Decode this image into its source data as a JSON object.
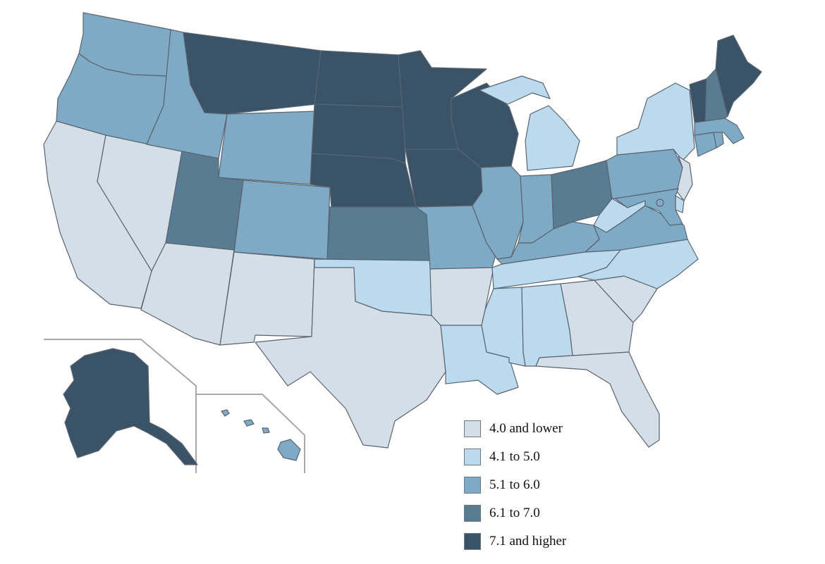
{
  "colors": {
    "c1": "#d4dee7",
    "c2": "#bcdaee",
    "c3": "#7eaac6",
    "c4": "#587c92",
    "c5": "#3b5366",
    "border": "#5a6470",
    "inset": "#a8a8a8"
  },
  "legend": [
    {
      "label": "4.0 and lower",
      "color": "#d4dee7"
    },
    {
      "label": "4.1 to 5.0",
      "color": "#bcdaee"
    },
    {
      "label": "5.1 to 6.0",
      "color": "#7eaac6"
    },
    {
      "label": "6.1 to 7.0",
      "color": "#587c92"
    },
    {
      "label": "7.1 and higher",
      "color": "#3b5366"
    }
  ],
  "state_classes": {
    "WA": "5.1 to 6.0",
    "OR": "5.1 to 6.0",
    "CA": "4.0 and lower",
    "NV": "4.0 and lower",
    "ID": "5.1 to 6.0",
    "MT": "7.1 and higher",
    "WY": "5.1 to 6.0",
    "UT": "6.1 to 7.0",
    "AZ": "4.0 and lower",
    "CO": "5.1 to 6.0",
    "NM": "4.0 and lower",
    "TX": "4.0 and lower",
    "ND": "7.1 and higher",
    "SD": "7.1 and higher",
    "NE": "7.1 and higher",
    "KS": "6.1 to 7.0",
    "OK": "4.1 to 5.0",
    "MN": "7.1 and higher",
    "IA": "7.1 and higher",
    "MO": "5.1 to 6.0",
    "AR": "4.0 and lower",
    "LA": "4.1 to 5.0",
    "WI": "7.1 and higher",
    "IL": "5.1 to 6.0",
    "MI": "4.1 to 5.0",
    "IN": "5.1 to 6.0",
    "OH": "6.1 to 7.0",
    "KY": "5.1 to 6.0",
    "TN": "4.1 to 5.0",
    "MS": "4.1 to 5.0",
    "AL": "4.1 to 5.0",
    "GA": "4.0 and lower",
    "FL": "4.0 and lower",
    "SC": "4.0 and lower",
    "NC": "4.1 to 5.0",
    "VA": "5.1 to 6.0",
    "WV": "4.1 to 5.0",
    "PA": "5.1 to 6.0",
    "NY": "4.1 to 5.0",
    "NJ": "4.0 and lower",
    "DE": "4.1 to 5.0",
    "MD": "5.1 to 6.0",
    "CT": "5.1 to 6.0",
    "RI": "5.1 to 6.0",
    "MA": "5.1 to 6.0",
    "VT": "7.1 and higher",
    "NH": "6.1 to 7.0",
    "ME": "7.1 and higher",
    "DC": "5.1 to 6.0",
    "AK": "7.1 and higher",
    "HI": "5.1 to 6.0"
  }
}
